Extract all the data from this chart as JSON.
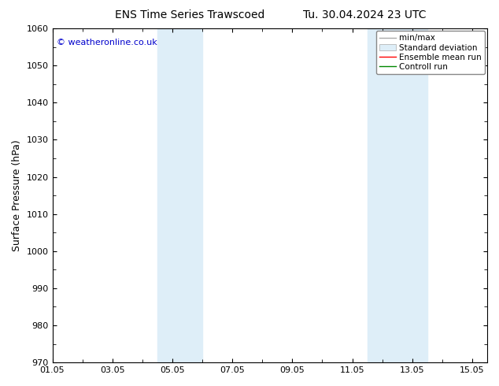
{
  "title_left": "ENS Time Series Trawscoed",
  "title_right": "Tu. 30.04.2024 23 UTC",
  "ylabel": "Surface Pressure (hPa)",
  "ylim": [
    970,
    1060
  ],
  "yticks": [
    970,
    980,
    990,
    1000,
    1010,
    1020,
    1030,
    1040,
    1050,
    1060
  ],
  "xlim_num": [
    0,
    14.5
  ],
  "xtick_labels": [
    "01.05",
    "03.05",
    "05.05",
    "07.05",
    "09.05",
    "11.05",
    "13.05",
    "15.05"
  ],
  "xtick_positions": [
    0,
    2,
    4,
    6,
    8,
    10,
    12,
    14
  ],
  "shaded_bands": [
    {
      "xmin": 3.5,
      "xmax": 5.0
    },
    {
      "xmin": 10.5,
      "xmax": 12.5
    }
  ],
  "shade_color": "#deeef8",
  "copyright_text": "© weatheronline.co.uk",
  "copyright_color": "#0000cc",
  "legend_labels": [
    "min/max",
    "Standard deviation",
    "Ensemble mean run",
    "Controll run"
  ],
  "legend_line_colors": [
    "#aaaaaa",
    "#cccccc",
    "#ff0000",
    "#008800"
  ],
  "background_color": "#ffffff",
  "plot_bg_color": "#ffffff",
  "border_color": "#000000",
  "title_fontsize": 10,
  "tick_fontsize": 8,
  "ylabel_fontsize": 9,
  "legend_fontsize": 7.5
}
